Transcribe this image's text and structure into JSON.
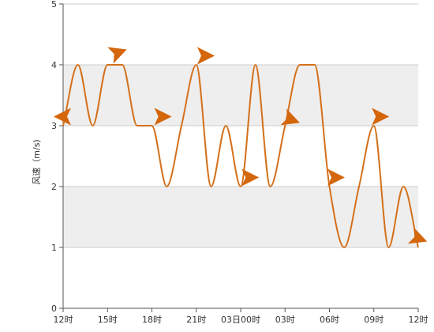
{
  "chart_data": {
    "type": "line",
    "title": "",
    "xlabel": "",
    "ylabel": "风速（m/s)",
    "ylim": [
      0,
      5
    ],
    "yticks": [
      0,
      1,
      2,
      3,
      4,
      5
    ],
    "xtick_labels": [
      "12时",
      "15时",
      "18时",
      "21时",
      "03日00时",
      "03时",
      "06时",
      "09时",
      "12时"
    ],
    "grid": true,
    "bands": [
      {
        "from": 1,
        "to": 2,
        "color": "#eeeeee"
      },
      {
        "from": 3,
        "to": 4,
        "color": "#eeeeee"
      }
    ],
    "line_color": "#d4701a",
    "arrow_color": "#d4660c",
    "series": [
      {
        "x": [
          0,
          1,
          2,
          3,
          4,
          5,
          6,
          7,
          8,
          9,
          10,
          11,
          12,
          13,
          14,
          15,
          16,
          17,
          18,
          19,
          20,
          21,
          22,
          23,
          24
        ],
        "values": [
          3,
          4,
          3,
          4,
          4,
          3,
          3,
          2,
          3,
          4,
          2,
          3,
          2,
          4,
          2,
          3,
          4,
          4,
          2,
          1,
          2,
          3,
          1,
          2,
          1
        ]
      }
    ],
    "wind_arrows": [
      {
        "x": 0,
        "y": 3.15,
        "dir": "left"
      },
      {
        "x": 3.7,
        "y": 4.2,
        "dir": "right-up"
      },
      {
        "x": 6.7,
        "y": 3.15,
        "dir": "right"
      },
      {
        "x": 9.6,
        "y": 4.15,
        "dir": "right"
      },
      {
        "x": 12.6,
        "y": 2.15,
        "dir": "right"
      },
      {
        "x": 15.4,
        "y": 3.1,
        "dir": "right-down"
      },
      {
        "x": 18.4,
        "y": 2.15,
        "dir": "right"
      },
      {
        "x": 21.4,
        "y": 3.15,
        "dir": "right"
      },
      {
        "x": 24.0,
        "y": 1.15,
        "dir": "right-down"
      }
    ]
  }
}
